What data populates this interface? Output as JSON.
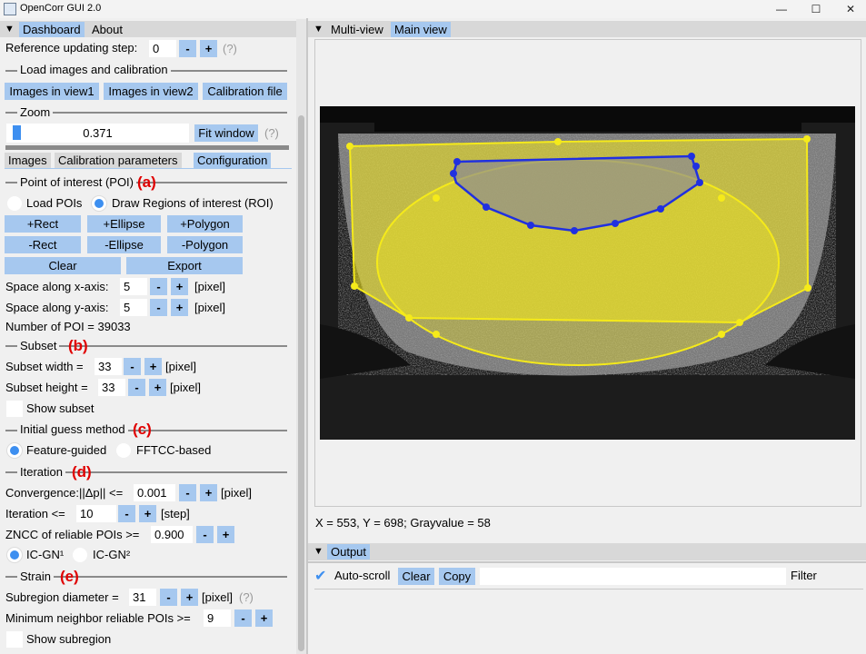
{
  "window": {
    "title": "OpenCorr GUI 2.0",
    "minimize": "—",
    "maximize": "☐",
    "close": "✕"
  },
  "left_tabs": {
    "dashboard": "Dashboard",
    "about": "About"
  },
  "reference": {
    "label": "Reference updating step:",
    "value": "0",
    "minus": "-",
    "plus": "+",
    "hint": "(?)"
  },
  "load": {
    "title": "Load images and calibration",
    "view1": "Images in view1",
    "view2": "Images in view2",
    "calibration": "Calibration file"
  },
  "zoom": {
    "title": "Zoom",
    "value": "0.371",
    "level": 0.045,
    "fit": "Fit window",
    "hint": "(?)"
  },
  "sub_tabs": {
    "images": "Images",
    "calibration": "Calibration parameters",
    "configuration": "Configuration"
  },
  "poi": {
    "title": "Point of interest (POI)",
    "mark": "(a)",
    "load_label": "Load POIs",
    "draw_label": "Draw Regions of interest (ROI)",
    "add_rect": "+Rect",
    "add_ellipse": "+Ellipse",
    "add_polygon": "+Polygon",
    "sub_rect": "-Rect",
    "sub_ellipse": "-Ellipse",
    "sub_polygon": "-Polygon",
    "clear": "Clear",
    "export": "Export",
    "x_label": "Space along x-axis:",
    "x_value": "5",
    "y_label": "Space along y-axis:",
    "y_value": "5",
    "unit": "[pixel]",
    "count": "Number of POI = 39033"
  },
  "subset": {
    "title": "Subset",
    "mark": "(b)",
    "width_label": "Subset width =",
    "width_value": "33",
    "height_label": "Subset height =",
    "height_value": "33",
    "unit": "[pixel]",
    "show": "Show subset"
  },
  "guess": {
    "title": "Initial guess method",
    "mark": "(c)",
    "feature": "Feature-guided",
    "fftcc": "FFTCC-based"
  },
  "iteration": {
    "title": "Iteration",
    "mark": "(d)",
    "conv_label": "Convergence:||Δp|| <=",
    "conv_value": "0.001",
    "conv_unit": "[pixel]",
    "iter_label": "Iteration <=",
    "iter_value": "10",
    "iter_unit": "[step]",
    "zncc_label": "ZNCC of reliable POIs >=",
    "zncc_value": "0.900",
    "icgn1": "IC-GN¹",
    "icgn2": "IC-GN²"
  },
  "strain": {
    "title": "Strain",
    "mark": "(e)",
    "diam_label": "Subregion diameter =",
    "diam_value": "31",
    "diam_unit": "[pixel]",
    "hint": "(?)",
    "neigh_label": "Minimum neighbor reliable POIs >=",
    "neigh_value": "9",
    "show": "Show subregion"
  },
  "view_tabs": {
    "multi": "Multi-view",
    "main": "Main view"
  },
  "status": "X = 553, Y = 698; Grayvalue = 58",
  "output": {
    "title": "Output",
    "autoscroll": "Auto-scroll",
    "clear": "Clear",
    "copy": "Copy",
    "filter_value": "",
    "filter_label": "Filter"
  },
  "colors": {
    "accent": "#a6c8ef",
    "roi_yellow": "#f5ea1a",
    "roi_blue": "#2030e0",
    "mark_red": "#e00000"
  }
}
